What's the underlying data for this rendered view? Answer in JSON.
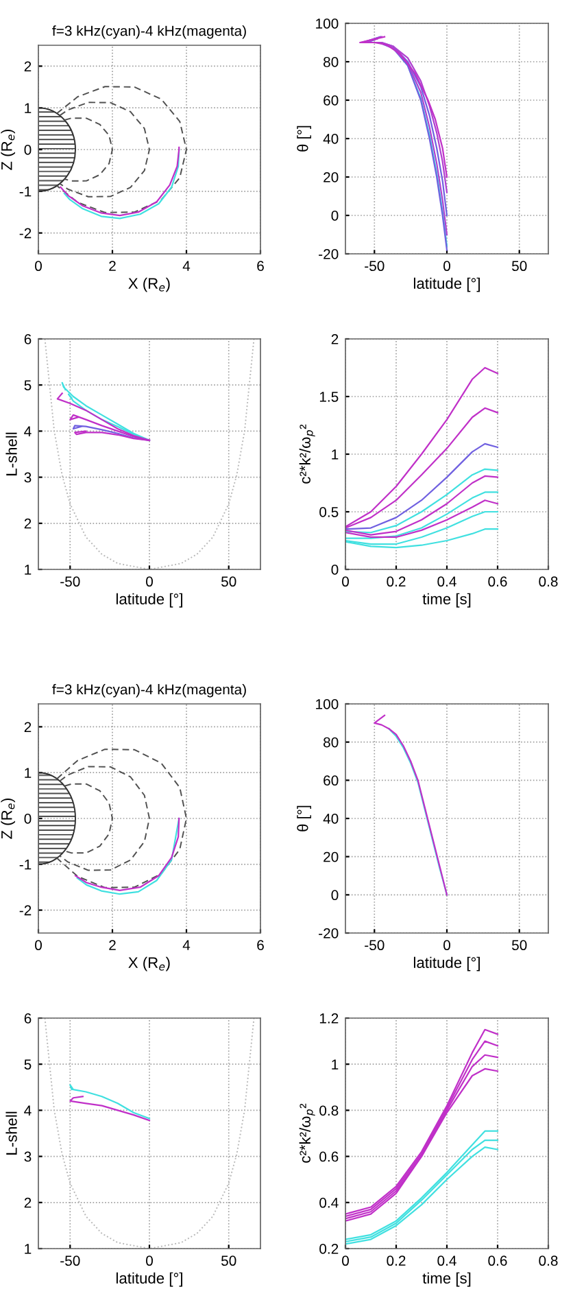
{
  "chart_data": [
    {
      "type": "line",
      "title": "f=3 kHz(cyan)-4 kHz(magenta)",
      "xlabel": "X (R$_{e}$)",
      "ylabel": "Z (R$_{e}$)",
      "xlim": [
        0,
        6
      ],
      "ylim": [
        -2.5,
        2.5
      ],
      "xticks": [
        0,
        2,
        4,
        6
      ],
      "yticks": [
        -2,
        -1,
        0,
        1,
        2
      ],
      "grid": true,
      "series": [
        {
          "color": "#505050",
          "line_style": "dashed",
          "x": [
            0.707,
            0.899,
            1.299,
            1.66,
            1.91,
            2,
            1.91,
            1.66,
            1.299,
            0.899,
            0.707
          ],
          "values": [
            0.707,
            0.754,
            0.75,
            0.604,
            0.337,
            0,
            -0.337,
            -0.604,
            -0.75,
            -0.754,
            -0.707
          ]
        },
        {
          "color": "#505050",
          "line_style": "dashed",
          "x": [
            0.577,
            0.797,
            1.348,
            1.949,
            2.489,
            2.865,
            3,
            2.865,
            2.489,
            1.949,
            1.348,
            0.797,
            0.577
          ],
          "values": [
            0.816,
            0.95,
            1.131,
            1.125,
            0.906,
            0.505,
            0,
            -0.505,
            -0.906,
            -1.125,
            -1.131,
            -0.95,
            -0.816
          ]
        },
        {
          "color": "#505050",
          "line_style": "dashed",
          "x": [
            0.5,
            1.062,
            1.798,
            2.598,
            3.319,
            3.82,
            4,
            3.82,
            3.319,
            2.598,
            1.798,
            1.062,
            0.5
          ],
          "values": [
            0.866,
            1.266,
            1.509,
            1.5,
            1.208,
            0.674,
            0,
            -0.674,
            -1.208,
            -1.5,
            -1.509,
            -1.266,
            -0.866
          ]
        },
        {
          "color": "#40e0e0",
          "x": [
            3.8,
            3.78,
            3.6,
            3.25,
            2.75,
            2.2,
            1.7,
            1.2,
            0.85,
            0.7
          ],
          "values": [
            0,
            -0.4,
            -0.9,
            -1.3,
            -1.55,
            -1.65,
            -1.6,
            -1.42,
            -1.2,
            -1.05
          ]
        },
        {
          "color": "#c030c8",
          "x": [
            3.8,
            3.8,
            3.75,
            3.55,
            3.2,
            2.7,
            2.2,
            1.7,
            1.2,
            0.8,
            0.6
          ],
          "values": [
            0.05,
            0,
            -0.4,
            -0.85,
            -1.25,
            -1.5,
            -1.58,
            -1.52,
            -1.35,
            -1.1,
            -0.9
          ]
        }
      ]
    },
    {
      "type": "line",
      "xlabel": "latitude [°]",
      "ylabel": "θ [°]",
      "xlim": [
        -70,
        70
      ],
      "ylim": [
        -20,
        100
      ],
      "xticks": [
        -50,
        0,
        50
      ],
      "yticks": [
        -20,
        0,
        20,
        40,
        60,
        80,
        100
      ],
      "grid": true,
      "series": [
        {
          "color": "#40e0e0",
          "x": [
            0,
            -3,
            -7,
            -12,
            -18,
            -27,
            -37
          ],
          "values": [
            -16,
            2,
            22,
            42,
            61,
            78,
            87
          ]
        },
        {
          "color": "#7060e0",
          "x": [
            0,
            -3,
            -7,
            -12,
            -18,
            -27,
            -37,
            -47,
            -55,
            -48
          ],
          "values": [
            -18,
            0,
            20,
            40,
            60,
            78,
            87,
            90,
            90,
            92
          ]
        },
        {
          "color": "#b040d0",
          "x": [
            0,
            -3,
            -7,
            -12,
            -18,
            -27,
            -37,
            -46,
            -57,
            -48
          ],
          "values": [
            -10,
            8,
            27,
            46,
            64,
            79,
            87,
            90,
            90,
            92
          ]
        },
        {
          "color": "#7060e0",
          "x": [
            0,
            -3,
            -7,
            -12,
            -18,
            -27,
            -37,
            -45,
            -58,
            -46
          ],
          "values": [
            0,
            18,
            35,
            52,
            67,
            80,
            88,
            90,
            90,
            93
          ]
        },
        {
          "color": "#b040d0",
          "x": [
            0,
            -3,
            -7,
            -12,
            -18,
            -27,
            -37,
            -45,
            -59,
            -45
          ],
          "values": [
            12,
            28,
            43,
            57,
            70,
            82,
            88,
            90,
            90,
            93
          ]
        },
        {
          "color": "#c030c8",
          "x": [
            0,
            -3,
            -8,
            -13,
            -22,
            -32,
            -42,
            -50,
            -60,
            -43
          ],
          "values": [
            20,
            35,
            50,
            60,
            74,
            84,
            89,
            90,
            90,
            93
          ]
        }
      ]
    },
    {
      "type": "line",
      "xlabel": "latitude [°]",
      "ylabel": "L-shell",
      "xlim": [
        -70,
        70
      ],
      "ylim": [
        1,
        6
      ],
      "xticks": [
        -50,
        0,
        50
      ],
      "yticks": [
        1,
        2,
        3,
        4,
        5,
        6
      ],
      "grid": true,
      "series": [
        {
          "color": "#b8b8b8",
          "line_style": "dotted",
          "x": [
            -65.9,
            -60,
            -55,
            -50,
            -40,
            -30,
            -20,
            0,
            20,
            30,
            40,
            50,
            55,
            60,
            65.9
          ],
          "values": [
            6,
            4,
            3.04,
            2.42,
            1.7,
            1.33,
            1.13,
            1,
            1.13,
            1.33,
            1.7,
            2.42,
            3.04,
            4,
            6
          ]
        },
        {
          "color": "#40e0e0",
          "x": [
            0,
            -10,
            -20,
            -30,
            -40,
            -48,
            -54,
            -55,
            -53
          ],
          "values": [
            3.8,
            3.95,
            4.15,
            4.35,
            4.55,
            4.75,
            4.95,
            5.05,
            4.9
          ]
        },
        {
          "color": "#40e0e0",
          "x": [
            0,
            -10,
            -20,
            -30,
            -40,
            -48,
            -51,
            -49
          ],
          "values": [
            3.8,
            3.93,
            4.1,
            4.25,
            4.45,
            4.65,
            4.8,
            4.72
          ]
        },
        {
          "color": "#c030c8",
          "x": [
            0,
            -10,
            -20,
            -30,
            -40,
            -50,
            -58,
            -55
          ],
          "values": [
            3.8,
            3.9,
            4.05,
            4.25,
            4.45,
            4.6,
            4.7,
            4.82
          ]
        },
        {
          "color": "#c030c8",
          "x": [
            0,
            -10,
            -20,
            -30,
            -40,
            -48,
            -50,
            -45
          ],
          "values": [
            3.8,
            3.88,
            4.0,
            4.12,
            4.25,
            4.35,
            4.25,
            4.3
          ]
        },
        {
          "color": "#7060e0",
          "x": [
            0,
            -10,
            -20,
            -30,
            -40,
            -47,
            -48,
            -43
          ],
          "values": [
            3.8,
            3.85,
            3.95,
            4.03,
            4.1,
            4.12,
            4.05,
            4.1
          ]
        },
        {
          "color": "#c030c8",
          "x": [
            0,
            -10,
            -20,
            -30,
            -40,
            -46,
            -47,
            -40
          ],
          "values": [
            3.8,
            3.84,
            3.92,
            3.97,
            3.97,
            3.93,
            3.97,
            4.0
          ]
        }
      ]
    },
    {
      "type": "line",
      "xlabel": "time [s]",
      "ylabel": "c²*k²/ω$_{p}$²",
      "xlim": [
        0,
        0.8
      ],
      "ylim": [
        0,
        2
      ],
      "xticks": [
        0,
        0.2,
        0.4,
        0.6,
        0.8
      ],
      "yticks": [
        0,
        0.5,
        1,
        1.5,
        2
      ],
      "grid": true,
      "series": [
        {
          "color": "#c030c8",
          "x": [
            0,
            0.1,
            0.2,
            0.3,
            0.4,
            0.5,
            0.55,
            0.6
          ],
          "values": [
            0.37,
            0.5,
            0.72,
            1.0,
            1.3,
            1.65,
            1.75,
            1.7
          ]
        },
        {
          "color": "#c030c8",
          "x": [
            0,
            0.1,
            0.2,
            0.3,
            0.4,
            0.5,
            0.55,
            0.6
          ],
          "values": [
            0.36,
            0.45,
            0.6,
            0.82,
            1.05,
            1.32,
            1.4,
            1.36
          ]
        },
        {
          "color": "#7060e0",
          "x": [
            0,
            0.1,
            0.2,
            0.3,
            0.4,
            0.5,
            0.55,
            0.6
          ],
          "values": [
            0.35,
            0.36,
            0.45,
            0.6,
            0.8,
            1.02,
            1.09,
            1.06
          ]
        },
        {
          "color": "#40e0e0",
          "x": [
            0,
            0.1,
            0.2,
            0.3,
            0.4,
            0.5,
            0.55,
            0.6
          ],
          "values": [
            0.33,
            0.32,
            0.38,
            0.5,
            0.65,
            0.82,
            0.87,
            0.86
          ]
        },
        {
          "color": "#c030c8",
          "x": [
            0,
            0.1,
            0.2,
            0.3,
            0.4,
            0.5,
            0.55,
            0.6
          ],
          "values": [
            0.34,
            0.3,
            0.33,
            0.43,
            0.57,
            0.75,
            0.81,
            0.8
          ]
        },
        {
          "color": "#40e0e0",
          "x": [
            0,
            0.1,
            0.2,
            0.3,
            0.4,
            0.5,
            0.55,
            0.6
          ],
          "values": [
            0.27,
            0.27,
            0.29,
            0.36,
            0.48,
            0.62,
            0.67,
            0.67
          ]
        },
        {
          "color": "#c030c8",
          "x": [
            0,
            0.1,
            0.2,
            0.3,
            0.4,
            0.5,
            0.55,
            0.6
          ],
          "values": [
            0.32,
            0.28,
            0.28,
            0.34,
            0.43,
            0.54,
            0.6,
            0.57
          ]
        },
        {
          "color": "#40e0e0",
          "x": [
            0,
            0.1,
            0.2,
            0.3,
            0.4,
            0.5,
            0.55,
            0.6
          ],
          "values": [
            0.25,
            0.22,
            0.22,
            0.28,
            0.36,
            0.46,
            0.5,
            0.5
          ]
        },
        {
          "color": "#40e0e0",
          "x": [
            0,
            0.1,
            0.2,
            0.3,
            0.4,
            0.5,
            0.55,
            0.6
          ],
          "values": [
            0.24,
            0.2,
            0.19,
            0.21,
            0.25,
            0.31,
            0.35,
            0.35
          ]
        }
      ]
    },
    {
      "type": "line",
      "title": "f=3 kHz(cyan)-4 kHz(magenta)",
      "xlabel": "X (R$_{e}$)",
      "ylabel": "Z (R$_{e}$)",
      "xlim": [
        0,
        6
      ],
      "ylim": [
        -2.5,
        2.5
      ],
      "xticks": [
        0,
        2,
        4,
        6
      ],
      "yticks": [
        -2,
        -1,
        0,
        1,
        2
      ],
      "grid": true,
      "series": [
        {
          "color": "#505050",
          "line_style": "dashed",
          "x": [
            0.707,
            0.899,
            1.299,
            1.66,
            1.91,
            2,
            1.91,
            1.66,
            1.299,
            0.899,
            0.707
          ],
          "values": [
            0.707,
            0.754,
            0.75,
            0.604,
            0.337,
            0,
            -0.337,
            -0.604,
            -0.75,
            -0.754,
            -0.707
          ]
        },
        {
          "color": "#505050",
          "line_style": "dashed",
          "x": [
            0.577,
            0.797,
            1.348,
            1.949,
            2.489,
            2.865,
            3,
            2.865,
            2.489,
            1.949,
            1.348,
            0.797,
            0.577
          ],
          "values": [
            0.816,
            0.95,
            1.131,
            1.125,
            0.906,
            0.505,
            0,
            -0.505,
            -0.906,
            -1.125,
            -1.131,
            -0.95,
            -0.816
          ]
        },
        {
          "color": "#505050",
          "line_style": "dashed",
          "x": [
            0.5,
            1.062,
            1.798,
            2.598,
            3.319,
            3.82,
            4,
            3.82,
            3.319,
            2.598,
            1.798,
            1.062,
            0.5
          ],
          "values": [
            0.866,
            1.266,
            1.509,
            1.5,
            1.208,
            0.674,
            0,
            -0.674,
            -1.208,
            -1.5,
            -1.509,
            -1.266,
            -0.866
          ]
        },
        {
          "color": "#40e0e0",
          "x": [
            3.8,
            3.6,
            3.2,
            2.7,
            2.2,
            1.7,
            1.3,
            1.05
          ],
          "values": [
            0,
            -0.9,
            -1.35,
            -1.6,
            -1.65,
            -1.58,
            -1.45,
            -1.3
          ]
        },
        {
          "color": "#c030c8",
          "x": [
            3.8,
            3.78,
            3.6,
            3.25,
            2.75,
            2.2,
            1.7,
            1.3,
            1.0
          ],
          "values": [
            0,
            -0.4,
            -0.85,
            -1.25,
            -1.5,
            -1.57,
            -1.5,
            -1.4,
            -1.25
          ]
        }
      ]
    },
    {
      "type": "line",
      "xlabel": "latitude [°]",
      "ylabel": "θ [°]",
      "xlim": [
        -70,
        70
      ],
      "ylim": [
        -20,
        100
      ],
      "xticks": [
        -50,
        0,
        50
      ],
      "yticks": [
        -20,
        0,
        20,
        40,
        60,
        80,
        100
      ],
      "grid": true,
      "series": [
        {
          "color": "#40e0e0",
          "x": [
            0,
            -5,
            -10,
            -15,
            -20,
            -25,
            -30,
            -35,
            -40
          ],
          "values": [
            0,
            14,
            29,
            44,
            59,
            69,
            77,
            83,
            87
          ]
        },
        {
          "color": "#c030c8",
          "x": [
            0,
            -5,
            -10,
            -15,
            -20,
            -25,
            -30,
            -35,
            -40,
            -45,
            -50,
            -43
          ],
          "values": [
            0,
            15,
            30,
            45,
            60,
            70,
            78,
            84,
            87,
            89,
            90,
            94
          ]
        }
      ]
    },
    {
      "type": "line",
      "xlabel": "latitude [°]",
      "ylabel": "L-shell",
      "xlim": [
        -70,
        70
      ],
      "ylim": [
        1,
        6
      ],
      "xticks": [
        -50,
        0,
        50
      ],
      "yticks": [
        1,
        2,
        3,
        4,
        5,
        6
      ],
      "grid": true,
      "series": [
        {
          "color": "#b8b8b8",
          "line_style": "dotted",
          "x": [
            -65.9,
            -60,
            -55,
            -50,
            -40,
            -30,
            -20,
            0,
            20,
            30,
            40,
            50,
            55,
            60,
            65.9
          ],
          "values": [
            6,
            4,
            3.04,
            2.42,
            1.7,
            1.33,
            1.13,
            1,
            1.13,
            1.33,
            1.7,
            2.42,
            3.04,
            4,
            6
          ]
        },
        {
          "color": "#40e0e0",
          "x": [
            0,
            -10,
            -20,
            -30,
            -40,
            -48,
            -50,
            -49
          ],
          "values": [
            3.82,
            3.95,
            4.15,
            4.3,
            4.4,
            4.45,
            4.55,
            4.45
          ]
        },
        {
          "color": "#c030c8",
          "x": [
            0,
            -10,
            -20,
            -30,
            -40,
            -50,
            -48,
            -42
          ],
          "values": [
            3.78,
            3.9,
            4.0,
            4.1,
            4.15,
            4.2,
            4.27,
            4.3
          ]
        }
      ]
    },
    {
      "type": "line",
      "xlabel": "time [s]",
      "ylabel": "c²*k²/ω$_{p}$²",
      "xlim": [
        0,
        0.8
      ],
      "ylim": [
        0.2,
        1.2
      ],
      "xticks": [
        0,
        0.2,
        0.4,
        0.6,
        0.8
      ],
      "yticks": [
        0.2,
        0.4,
        0.6,
        0.8,
        1,
        1.2
      ],
      "grid": true,
      "series": [
        {
          "color": "#c030c8",
          "x": [
            0,
            0.1,
            0.2,
            0.3,
            0.4,
            0.5,
            0.55,
            0.6
          ],
          "values": [
            0.35,
            0.38,
            0.47,
            0.62,
            0.82,
            1.05,
            1.15,
            1.13
          ]
        },
        {
          "color": "#c030c8",
          "x": [
            0,
            0.1,
            0.2,
            0.3,
            0.4,
            0.5,
            0.55,
            0.6
          ],
          "values": [
            0.34,
            0.37,
            0.46,
            0.61,
            0.81,
            1.02,
            1.1,
            1.08
          ]
        },
        {
          "color": "#c030c8",
          "x": [
            0,
            0.1,
            0.2,
            0.3,
            0.4,
            0.5,
            0.55,
            0.6
          ],
          "values": [
            0.33,
            0.36,
            0.45,
            0.6,
            0.8,
            0.99,
            1.04,
            1.03
          ]
        },
        {
          "color": "#c030c8",
          "x": [
            0,
            0.1,
            0.2,
            0.3,
            0.4,
            0.5,
            0.55,
            0.6
          ],
          "values": [
            0.32,
            0.35,
            0.44,
            0.6,
            0.79,
            0.95,
            0.98,
            0.97
          ]
        },
        {
          "color": "#40e0e0",
          "x": [
            0,
            0.1,
            0.2,
            0.3,
            0.4,
            0.5,
            0.55,
            0.6
          ],
          "values": [
            0.24,
            0.26,
            0.32,
            0.42,
            0.53,
            0.65,
            0.71,
            0.71
          ]
        },
        {
          "color": "#40e0e0",
          "x": [
            0,
            0.1,
            0.2,
            0.3,
            0.4,
            0.5,
            0.55,
            0.6
          ],
          "values": [
            0.23,
            0.25,
            0.31,
            0.41,
            0.52,
            0.63,
            0.67,
            0.67
          ]
        },
        {
          "color": "#40e0e0",
          "x": [
            0,
            0.1,
            0.2,
            0.3,
            0.4,
            0.5,
            0.55,
            0.6
          ],
          "values": [
            0.22,
            0.24,
            0.3,
            0.39,
            0.5,
            0.6,
            0.64,
            0.63
          ]
        }
      ]
    }
  ]
}
